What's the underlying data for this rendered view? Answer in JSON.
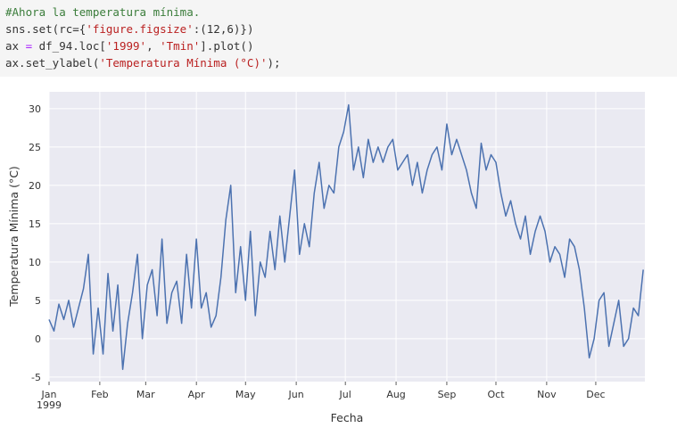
{
  "code": {
    "lines": [
      [
        {
          "text": "#Ahora la temperatura mínima.",
          "color": "#3b7d3b"
        }
      ],
      [
        {
          "text": "sns.set(rc={",
          "color": "#333333"
        },
        {
          "text": "'figure.figsize'",
          "color": "#ba2121"
        },
        {
          "text": ":(12,6)})",
          "color": "#333333"
        }
      ],
      [
        {
          "text": "ax ",
          "color": "#333333"
        },
        {
          "text": "=",
          "color": "#aa22ff"
        },
        {
          "text": " df_94.loc[",
          "color": "#333333"
        },
        {
          "text": "'1999'",
          "color": "#ba2121"
        },
        {
          "text": ", ",
          "color": "#333333"
        },
        {
          "text": "'Tmin'",
          "color": "#ba2121"
        },
        {
          "text": "].plot()",
          "color": "#333333"
        }
      ],
      [
        {
          "text": "ax.set_ylabel(",
          "color": "#333333"
        },
        {
          "text": "'Temperatura Mínima (°C)'",
          "color": "#ba2121"
        },
        {
          "text": ");",
          "color": "#333333"
        }
      ]
    ]
  },
  "chart_data": {
    "type": "line",
    "xlabel": "Fecha",
    "ylabel": "Temperatura Mínima (°C)",
    "color": "#4c72b0",
    "grid": true,
    "x": [
      0,
      3,
      6,
      9,
      12,
      15,
      18,
      21,
      24,
      27,
      30,
      33,
      36,
      39,
      42,
      45,
      48,
      51,
      54,
      57,
      60,
      63,
      66,
      69,
      72,
      75,
      78,
      81,
      84,
      87,
      90,
      93,
      96,
      99,
      102,
      105,
      108,
      111,
      114,
      117,
      120,
      123,
      126,
      129,
      132,
      135,
      138,
      141,
      144,
      147,
      150,
      153,
      156,
      159,
      162,
      165,
      168,
      171,
      174,
      177,
      180,
      183,
      186,
      189,
      192,
      195,
      198,
      201,
      204,
      207,
      210,
      213,
      216,
      219,
      222,
      225,
      228,
      231,
      234,
      237,
      240,
      243,
      246,
      249,
      252,
      255,
      258,
      261,
      264,
      267,
      270,
      273,
      276,
      279,
      282,
      285,
      288,
      291,
      294,
      297,
      300,
      303,
      306,
      309,
      312,
      315,
      318,
      321,
      324,
      327,
      330,
      333,
      336,
      339,
      342,
      345,
      348,
      351,
      354,
      357,
      360,
      363
    ],
    "values": [
      2.5,
      1,
      4.5,
      2.5,
      5,
      1.5,
      4,
      6.5,
      11,
      -2,
      4,
      -2,
      8.5,
      1,
      7,
      -4,
      2,
      6,
      11,
      0,
      7,
      9,
      3,
      13,
      2,
      6,
      7.5,
      2,
      11,
      4,
      13,
      4,
      6,
      1.5,
      3,
      8,
      15.5,
      20,
      6,
      12,
      5,
      14,
      3,
      10,
      8,
      14,
      9,
      16,
      10,
      16,
      22,
      11,
      15,
      12,
      19,
      23,
      17,
      20,
      19,
      25,
      27,
      30.5,
      22,
      25,
      21,
      26,
      23,
      25,
      23,
      25,
      26,
      22,
      23,
      24,
      20,
      23,
      19,
      22,
      24,
      25,
      22,
      28,
      24,
      26,
      24,
      22,
      19,
      17,
      25.5,
      22,
      24,
      23,
      19,
      16,
      18,
      15,
      13,
      16,
      11,
      14,
      16,
      14,
      10,
      12,
      11,
      8,
      13,
      12,
      9,
      4,
      -2.5,
      0,
      5,
      6,
      -1,
      2,
      5,
      -1,
      0,
      4,
      3,
      9
    ],
    "xlim": [
      0,
      364
    ],
    "xticks": [
      {
        "value": 0,
        "label": "Jan\n1999"
      },
      {
        "value": 31,
        "label": "Feb"
      },
      {
        "value": 59,
        "label": "Mar"
      },
      {
        "value": 90,
        "label": "Apr"
      },
      {
        "value": 120,
        "label": "May"
      },
      {
        "value": 151,
        "label": "Jun"
      },
      {
        "value": 181,
        "label": "Jul"
      },
      {
        "value": 212,
        "label": "Aug"
      },
      {
        "value": 243,
        "label": "Sep"
      },
      {
        "value": 273,
        "label": "Oct"
      },
      {
        "value": 304,
        "label": "Nov"
      },
      {
        "value": 334,
        "label": "Dec"
      }
    ],
    "ylim": [
      -5.6,
      32.2
    ],
    "yticks": [
      -5,
      0,
      5,
      10,
      15,
      20,
      25,
      30
    ]
  }
}
